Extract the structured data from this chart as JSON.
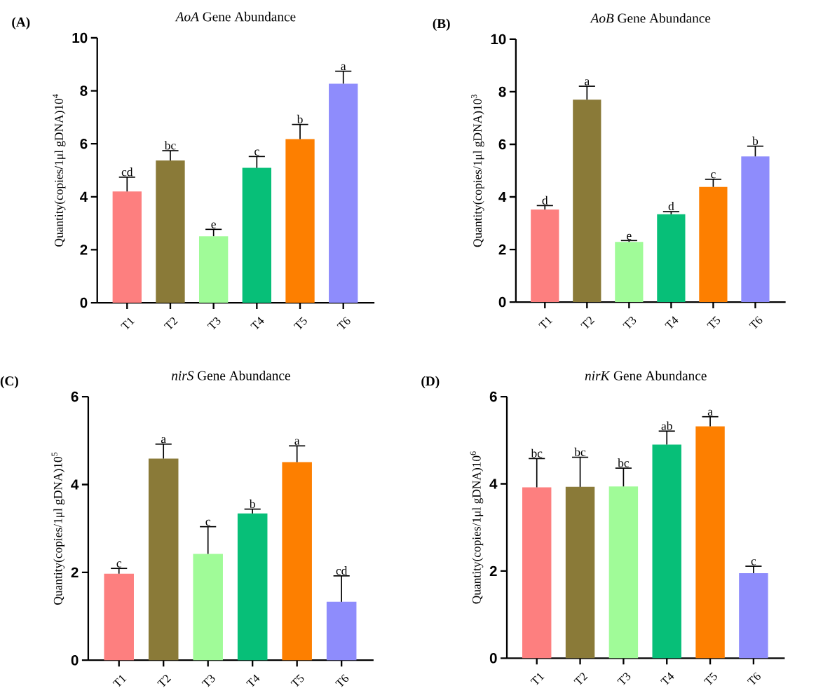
{
  "chart_data": [
    {
      "type": "bar",
      "title": "*AoA* Gene Abundance",
      "ylabel": "Quantity(copies/1μl gDNA)10$^{4}$",
      "categories": [
        "T1",
        "T2",
        "T3",
        "T4",
        "T5",
        "T6"
      ],
      "values": [
        4.2,
        5.37,
        2.51,
        5.09,
        6.18,
        8.27
      ],
      "errors": [
        0.54,
        0.37,
        0.26,
        0.43,
        0.55,
        0.47
      ],
      "colors": [
        "#fd7f7f",
        "#8a7a38",
        "#a0fb98",
        "#07bf78",
        "#fd7f00",
        "#8e8cfc"
      ],
      "ylim": [
        0,
        10
      ],
      "yticks": [
        0,
        2,
        4,
        6,
        8,
        10
      ],
      "annotations": [
        "(A)",
        {
          "text": "cd",
          "x": "T1",
          "y": 4.74
        },
        {
          "text": "bc",
          "x": "T2",
          "y": 5.74
        },
        {
          "text": "e",
          "x": "T3",
          "y": 2.77
        },
        {
          "text": "c",
          "x": "T4",
          "y": 5.52
        },
        {
          "text": "b",
          "x": "T5",
          "y": 6.73
        },
        {
          "text": "a",
          "x": "T6",
          "y": 8.74
        }
      ]
    },
    {
      "type": "bar",
      "title": "*AoB* Gene Abundance",
      "ylabel": "Quantity(copies/1μl gDNA)10$^{3}$",
      "categories": [
        "T1",
        "T2",
        "T3",
        "T4",
        "T5",
        "T6"
      ],
      "values": [
        3.52,
        7.7,
        2.29,
        3.34,
        4.38,
        5.54
      ],
      "errors": [
        0.15,
        0.51,
        0.05,
        0.1,
        0.29,
        0.39
      ],
      "colors": [
        "#fd7f7f",
        "#8a7a38",
        "#a0fb98",
        "#07bf78",
        "#fd7f00",
        "#8e8cfc"
      ],
      "ylim": [
        0,
        10
      ],
      "yticks": [
        0,
        2,
        4,
        6,
        8,
        10
      ],
      "annotations": [
        "(B)",
        {
          "text": "d",
          "x": "T1",
          "y": 3.67
        },
        {
          "text": "a",
          "x": "T2",
          "y": 8.21
        },
        {
          "text": "e",
          "x": "T3",
          "y": 2.33
        },
        {
          "text": "d",
          "x": "T4",
          "y": 3.45
        },
        {
          "text": "c",
          "x": "T5",
          "y": 4.67
        },
        {
          "text": "b",
          "x": "T6",
          "y": 5.93
        }
      ]
    },
    {
      "type": "bar",
      "title": "*nirS* Gene Abundance",
      "ylabel": "Quantity(copies/1μl gDNA)10$^{5}$",
      "categories": [
        "T1",
        "T2",
        "T3",
        "T4",
        "T5",
        "T6"
      ],
      "values": [
        1.97,
        4.59,
        2.42,
        3.34,
        4.51,
        1.33
      ],
      "errors": [
        0.12,
        0.33,
        0.62,
        0.1,
        0.37,
        0.59
      ],
      "colors": [
        "#fd7f7f",
        "#8a7a38",
        "#a0fb98",
        "#07bf78",
        "#fd7f00",
        "#8e8cfc"
      ],
      "ylim": [
        0,
        6
      ],
      "yticks": [
        0,
        2,
        4,
        6
      ],
      "annotations": [
        "(C)",
        {
          "text": "c",
          "x": "T1",
          "y": 2.09
        },
        {
          "text": "a",
          "x": "T2",
          "y": 4.92
        },
        {
          "text": "c",
          "x": "T3",
          "y": 3.04
        },
        {
          "text": "b",
          "x": "T4",
          "y": 3.44
        },
        {
          "text": "a",
          "x": "T5",
          "y": 4.88
        },
        {
          "text": "cd",
          "x": "T6",
          "y": 1.92
        }
      ]
    },
    {
      "type": "bar",
      "title": "*nirK* Gene Abundance",
      "ylabel": "Quantity(copies/1μl gDNA)10$^{6}$",
      "categories": [
        "T1",
        "T2",
        "T3",
        "T4",
        "T5",
        "T6"
      ],
      "values": [
        3.92,
        3.93,
        3.94,
        4.9,
        5.32,
        1.95
      ],
      "errors": [
        0.66,
        0.68,
        0.42,
        0.31,
        0.22,
        0.16
      ],
      "colors": [
        "#fd7f7f",
        "#8a7a38",
        "#a0fb98",
        "#07bf78",
        "#fd7f00",
        "#8e8cfc"
      ],
      "ylim": [
        0,
        6
      ],
      "yticks": [
        0,
        2,
        4,
        6
      ],
      "annotations": [
        "(D)",
        {
          "text": "bc",
          "x": "T1",
          "y": 4.58
        },
        {
          "text": "bc",
          "x": "T2",
          "y": 4.61
        },
        {
          "text": "bc",
          "x": "T3",
          "y": 4.36
        },
        {
          "text": "ab",
          "x": "T4",
          "y": 5.21
        },
        {
          "text": "a",
          "x": "T5",
          "y": 5.54
        },
        {
          "text": "c",
          "x": "T6",
          "y": 2.11
        }
      ]
    }
  ]
}
